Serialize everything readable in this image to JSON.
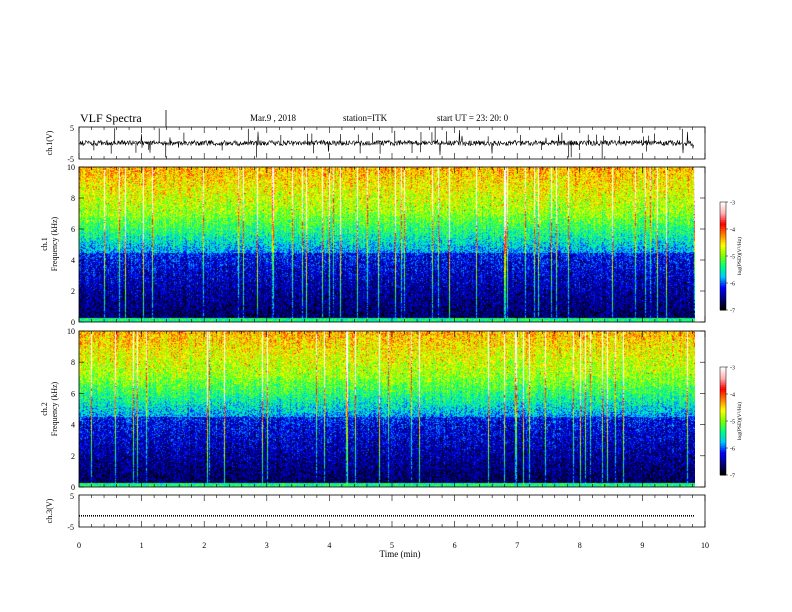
{
  "header": {
    "title": "VLF Spectra",
    "date": "Mar.9  , 2018",
    "station": "station=ITK",
    "start": "start  UT  =   23: 20: 0"
  },
  "panels": {
    "ch1_wave": {
      "ylabel": "ch.1(V)",
      "ticks": [
        "5",
        "-5"
      ]
    },
    "ch1_spec": {
      "ylabel_line1": "ch.1",
      "ylabel_line2": "Frequency  (kHz)",
      "ticks": [
        "10",
        "8",
        "6",
        "4",
        "2",
        "0"
      ]
    },
    "ch2_spec": {
      "ylabel_line1": "ch.2",
      "ylabel_line2": "Frequency  (kHz)",
      "ticks": [
        "10",
        "8",
        "6",
        "4",
        "2",
        "0"
      ]
    },
    "ch3_wave": {
      "ylabel": "ch.3(V)",
      "ticks": [
        "5",
        "-5"
      ]
    }
  },
  "colorbar": {
    "label": "log(PSD)(V²/Hz)",
    "ticks": [
      "-3",
      "-4",
      "-5",
      "-6",
      "-7"
    ]
  },
  "xaxis": {
    "label": "Time  (min)",
    "ticks": [
      "0",
      "1",
      "2",
      "3",
      "4",
      "5",
      "6",
      "7",
      "8",
      "9",
      "10"
    ]
  },
  "chart_data": {
    "type": "heatmap",
    "title": "VLF Spectra",
    "xlabel": "Time  (min)",
    "ylabel": "Frequency  (kHz)",
    "xlim": [
      0,
      10
    ],
    "ylim": [
      0,
      10
    ],
    "data_extent_min": 9.83,
    "colorbar_range": [
      -7,
      -3
    ],
    "colorscale": [
      "#000000",
      "#000080",
      "#0000ff",
      "#00c8ff",
      "#00ff80",
      "#80ff00",
      "#ffff00",
      "#ff8000",
      "#ff0000",
      "#ffb0b0",
      "#ffffff"
    ],
    "channels": [
      "ch.1",
      "ch.2"
    ],
    "waveform_ylim": [
      -5,
      5
    ],
    "ch3_level": -1.5
  }
}
